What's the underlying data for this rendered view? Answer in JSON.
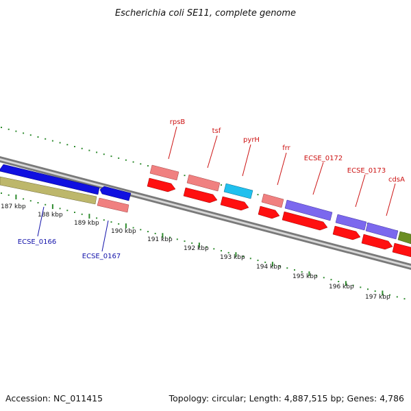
{
  "title": "Escherichia coli SE11, complete genome",
  "footer": {
    "accession": "Accession: NC_011415",
    "summary": "Topology: circular; Length: 4,887,515 bp; Genes: 4,786"
  },
  "colors": {
    "tick": "#2e8b2e",
    "backbone_dark": "#7a7a7a",
    "backbone_light": "#d8d8d8",
    "label_red": "#cc1111",
    "label_blue": "#1111aa"
  },
  "ticks": [
    "187 kbp",
    "188 kbp",
    "189 kbp",
    "190 kbp",
    "191 kbp",
    "192 kbp",
    "193 kbp",
    "194 kbp",
    "195 kbp",
    "196 kbp",
    "197 kbp"
  ],
  "gene_labels": {
    "rpsB": "rpsB",
    "tsf": "tsf",
    "pyrH": "pyrH",
    "frr": "frr",
    "ECSE_0172": "ECSE_0172",
    "ECSE_0173": "ECSE_0173",
    "cdsA": "cdsA",
    "ECSE_0166": "ECSE_0166",
    "ECSE_0167": "ECSE_0167"
  }
}
